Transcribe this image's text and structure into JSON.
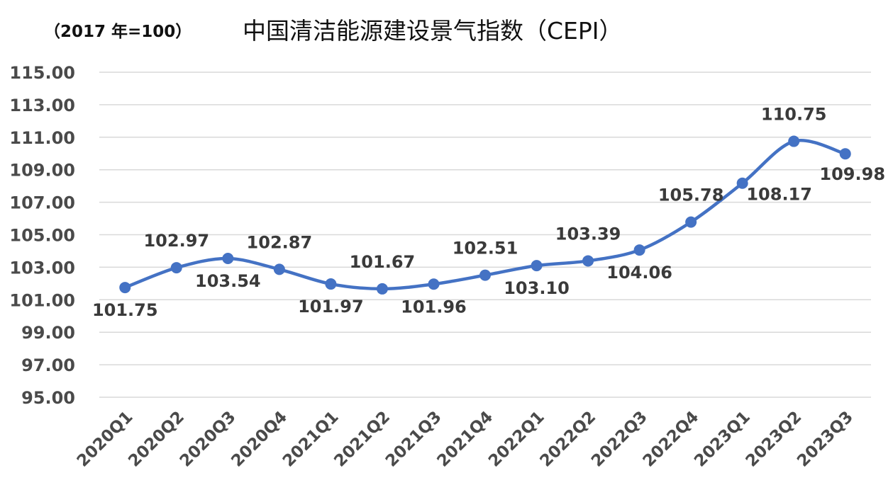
{
  "chart_data": {
    "type": "line",
    "title": "中国清洁能源建设景气指数（CEPI）",
    "subtitle": "（2017 年=100）",
    "xlabel": "",
    "ylabel": "",
    "categories": [
      "2020Q1",
      "2020Q2",
      "2020Q3",
      "2020Q4",
      "2021Q1",
      "2021Q2",
      "2021Q3",
      "2021Q4",
      "2022Q1",
      "2022Q2",
      "2022Q3",
      "2022Q4",
      "2023Q1",
      "2023Q2",
      "2023Q3"
    ],
    "series": [
      {
        "values": [
          101.75,
          102.97,
          103.54,
          102.87,
          101.97,
          101.67,
          101.96,
          102.51,
          103.1,
          103.39,
          104.06,
          105.78,
          108.17,
          110.75,
          109.98
        ],
        "labels": [
          "101.75",
          "102.97",
          "103.54",
          "102.87",
          "101.97",
          "101.67",
          "101.96",
          "102.51",
          "103.10",
          "103.39",
          "104.06",
          "105.78",
          "108.17",
          "110.75",
          "109.98"
        ],
        "color": "#4472c4"
      }
    ],
    "ylim": [
      95,
      115
    ],
    "yticks": [
      "95.00",
      "97.00",
      "99.00",
      "101.00",
      "103.00",
      "105.00",
      "107.00",
      "109.00",
      "111.00",
      "113.00",
      "115.00"
    ],
    "grid": true,
    "legend": "none"
  }
}
